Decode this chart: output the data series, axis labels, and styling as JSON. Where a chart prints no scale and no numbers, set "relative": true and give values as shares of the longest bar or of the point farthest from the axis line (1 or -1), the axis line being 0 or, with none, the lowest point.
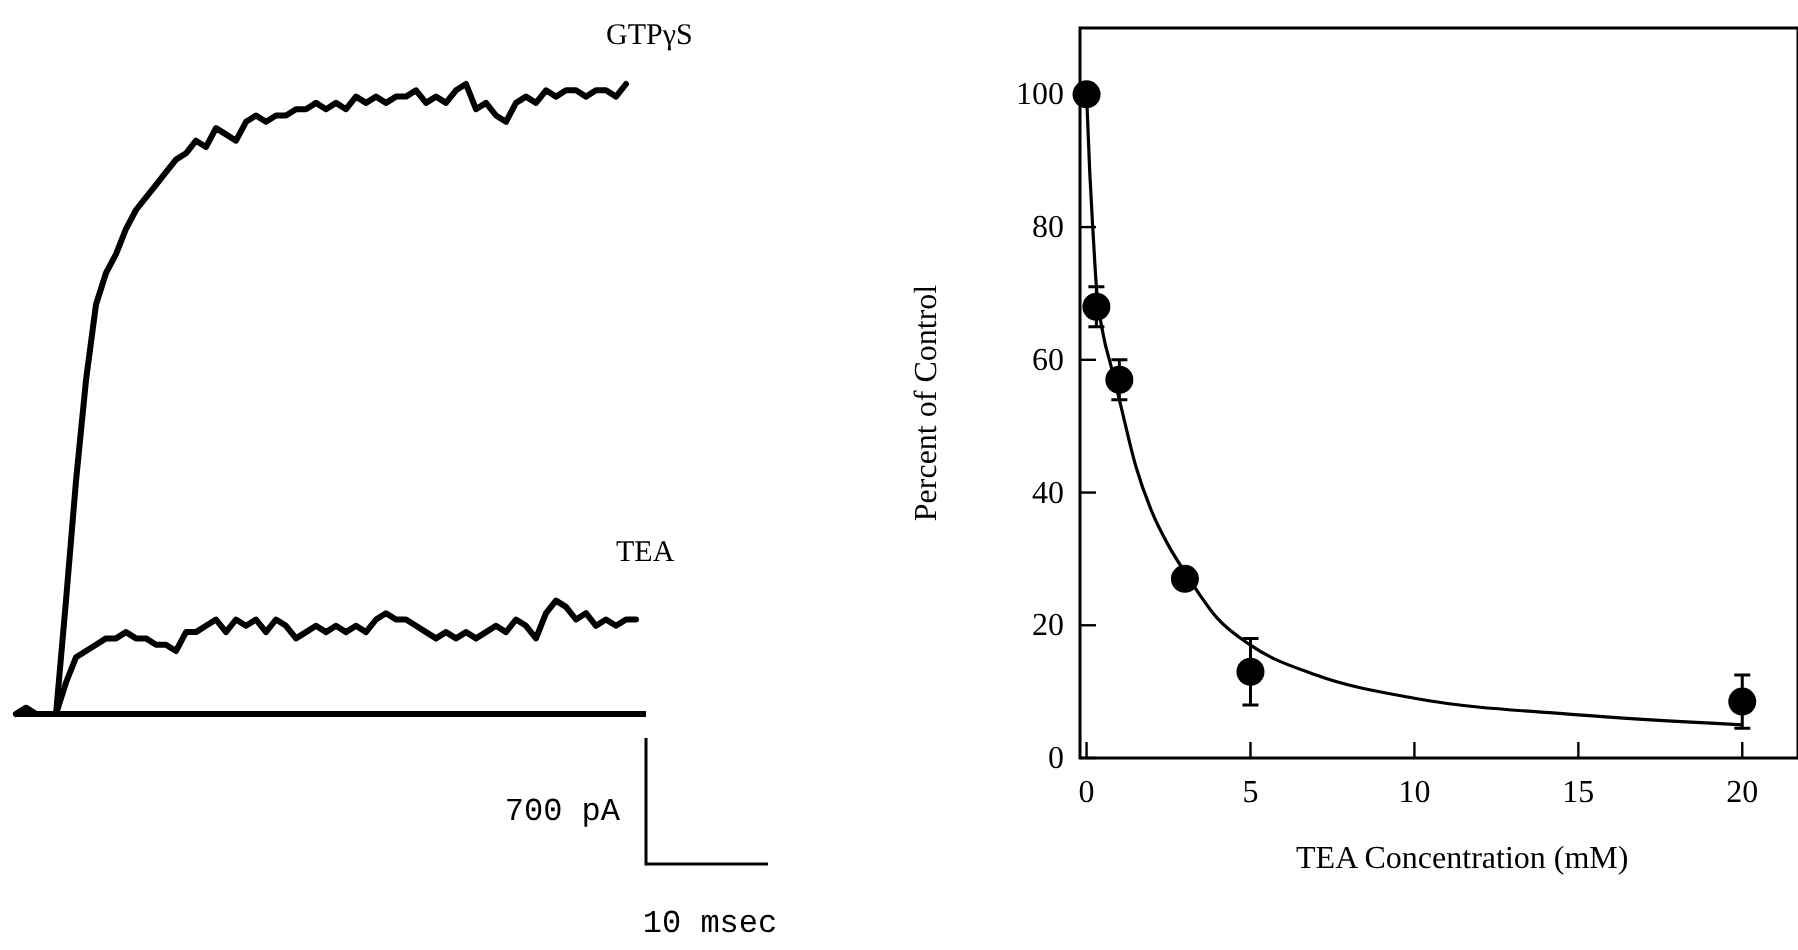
{
  "chart_data": [
    {
      "type": "line",
      "relative": true,
      "categories": [
        null,
        null,
        null,
        null,
        null,
        null,
        null,
        null,
        null,
        null,
        null,
        null,
        null,
        null,
        null,
        null,
        null,
        null,
        null,
        null,
        null,
        null,
        null,
        null,
        null,
        null,
        null,
        null,
        null,
        null,
        null,
        null,
        null,
        null,
        null,
        null,
        null,
        null,
        null,
        null,
        null,
        null,
        null,
        null,
        null,
        null,
        null,
        null,
        null,
        null,
        null,
        null,
        null,
        null,
        null,
        null,
        null,
        null,
        null,
        null,
        null,
        null,
        null,
        null
      ],
      "series": [
        {
          "name": "GTPγS",
          "color": "#000000",
          "values": [
            0,
            0.01,
            0,
            0,
            0,
            0.18,
            0.37,
            0.53,
            0.65,
            0.7,
            0.73,
            0.77,
            0.8,
            0.82,
            0.84,
            0.86,
            0.88,
            0.89,
            0.91,
            0.9,
            0.93,
            0.92,
            0.91,
            0.94,
            0.95,
            0.94,
            0.95,
            0.95,
            0.96,
            0.96,
            0.97,
            0.96,
            0.97,
            0.96,
            0.98,
            0.97,
            0.98,
            0.97,
            0.98,
            0.98,
            0.99,
            0.97,
            0.98,
            0.97,
            0.99,
            1,
            0.96,
            0.97,
            0.95,
            0.94,
            0.97,
            0.98,
            0.97,
            0.99,
            0.98,
            0.99,
            0.99,
            0.98,
            0.99,
            0.99,
            0.98,
            1,
            null,
            null
          ]
        },
        {
          "name": "TEA",
          "color": "#000000",
          "values": [
            0,
            0.01,
            0,
            0,
            0,
            0.05,
            0.09,
            0.1,
            0.11,
            0.12,
            0.12,
            0.13,
            0.12,
            0.12,
            0.11,
            0.11,
            0.1,
            0.13,
            0.13,
            0.14,
            0.15,
            0.13,
            0.15,
            0.14,
            0.15,
            0.13,
            0.15,
            0.14,
            0.12,
            0.13,
            0.14,
            0.13,
            0.14,
            0.13,
            0.14,
            0.13,
            0.15,
            0.16,
            0.15,
            0.15,
            0.14,
            0.13,
            0.12,
            0.13,
            0.12,
            0.13,
            0.12,
            0.13,
            0.14,
            0.13,
            0.15,
            0.14,
            0.12,
            0.16,
            0.18,
            0.17,
            0.15,
            0.16,
            0.14,
            0.15,
            0.14,
            0.15,
            0.15,
            null
          ]
        }
      ],
      "annotations": [
        "700 pA",
        "10 msec"
      ]
    },
    {
      "type": "scatter",
      "xlabel": "TEA Concentration (mM)",
      "ylabel": "Percent of Control",
      "xlim": [
        -0.2,
        21.7
      ],
      "xticks": [
        0,
        5,
        10,
        15,
        20
      ],
      "ylim": [
        0,
        110
      ],
      "yticks": [
        0,
        20,
        40,
        60,
        80,
        100
      ],
      "series": [
        {
          "type": "scatter",
          "marker": "circle",
          "color": "#000000",
          "x": [
            0,
            0.3,
            1,
            3,
            5,
            20
          ],
          "values": [
            100,
            68,
            57,
            27,
            13,
            8.5
          ],
          "errors": [
            null,
            3,
            3,
            null,
            [
              8,
              18
            ],
            [
              4.5,
              12.5
            ]
          ]
        },
        {
          "type": "line",
          "color": "#000000",
          "x": [
            0,
            0.1,
            0.2,
            0.3,
            0.5,
            0.75,
            1,
            1.5,
            2,
            2.5,
            3,
            4,
            5,
            7,
            10,
            15,
            20
          ],
          "values": [
            100,
            88,
            79,
            71,
            64,
            59,
            54,
            44,
            37,
            32,
            28,
            21,
            17,
            12.5,
            9,
            6.5,
            5
          ]
        }
      ]
    }
  ]
}
